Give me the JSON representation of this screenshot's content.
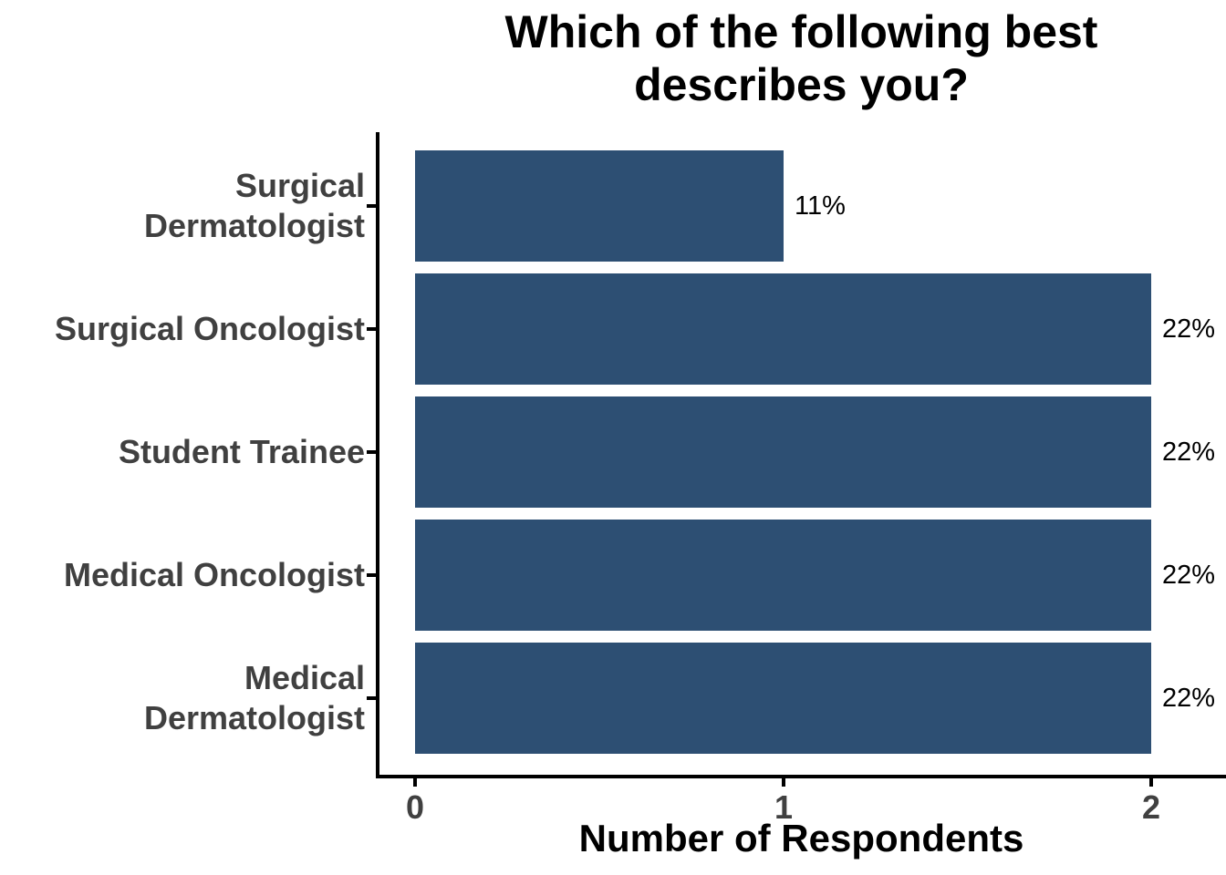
{
  "chart_data": {
    "type": "bar",
    "orientation": "horizontal",
    "title": "Which of the following best describes you?",
    "title_lines": [
      "Which of the following best",
      "describes you?"
    ],
    "xlabel": "Number of Respondents",
    "ylabel": "",
    "categories": [
      "Surgical Dermatologist",
      "Surgical Oncologist",
      "Student Trainee",
      "Medical Oncologist",
      "Medical Dermatologist"
    ],
    "category_lines": [
      [
        "Surgical",
        "Dermatologist"
      ],
      [
        "Surgical Oncologist"
      ],
      [
        "Student Trainee"
      ],
      [
        "Medical Oncologist"
      ],
      [
        "Medical",
        "Dermatologist"
      ]
    ],
    "values": [
      1,
      2,
      2,
      2,
      2
    ],
    "bar_labels": [
      "11%",
      "22%",
      "22%",
      "22%",
      "22%"
    ],
    "x_ticks": [
      "0",
      "1",
      "2"
    ],
    "x_tick_values": [
      0,
      1,
      2
    ],
    "xlim": [
      0,
      2
    ],
    "grid": false,
    "legend": false,
    "colors": {
      "bar": "#2D4F73",
      "axis_line": "#000000",
      "tick_label": "#404040",
      "category_label": "#404040",
      "title": "#000000",
      "value_label": "#000000",
      "background": "#FFFFFF"
    }
  }
}
